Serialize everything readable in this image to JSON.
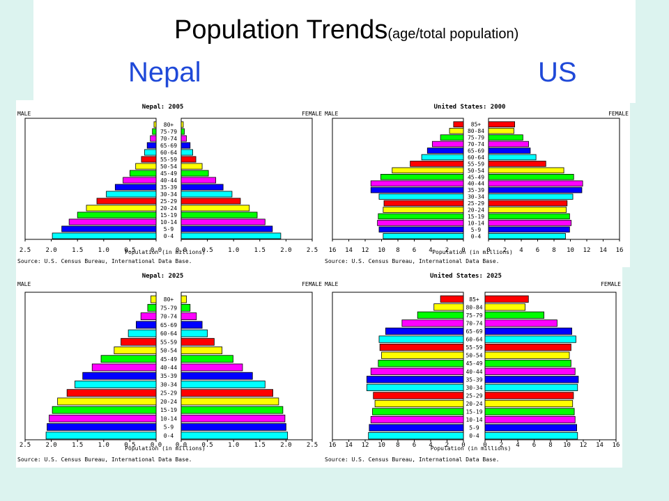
{
  "slide": {
    "title": "Population Trends",
    "title_suffix": "(age/total population)",
    "label_left": "Nepal",
    "label_right": "US"
  },
  "colors": {
    "background": "#dcf3ef",
    "label": "#1f49d8",
    "band_cycle": [
      "#00ffff",
      "#0000ff",
      "#ff00ff",
      "#00ff00",
      "#ffff00",
      "#ff0000"
    ]
  },
  "chart_data": [
    {
      "type": "bar",
      "title": "Nepal: 2005",
      "left_label": "MALE",
      "right_label": "FEMALE",
      "xlabel": "Population (in millions)",
      "source": "Source: U.S. Census Bureau, International Data Base.",
      "xlim": [
        0,
        2.5
      ],
      "x_ticks_left": [
        "2.5",
        "2.0",
        "1.5",
        "1.0",
        "0.5",
        "0.0"
      ],
      "x_ticks_right": [
        "0.0",
        "0.5",
        "1.0",
        "1.5",
        "2.0",
        "2.5"
      ],
      "categories": [
        "0-4",
        "5-9",
        "10-14",
        "15-19",
        "20-24",
        "25-29",
        "30-34",
        "35-39",
        "40-44",
        "45-49",
        "50-54",
        "55-59",
        "60-64",
        "65-69",
        "70-74",
        "75-79",
        "80+"
      ],
      "series": [
        {
          "name": "MALE",
          "values": [
            1.98,
            1.8,
            1.66,
            1.5,
            1.33,
            1.13,
            0.95,
            0.78,
            0.63,
            0.5,
            0.39,
            0.28,
            0.22,
            0.17,
            0.11,
            0.07,
            0.04
          ]
        },
        {
          "name": "FEMALE",
          "values": [
            1.9,
            1.74,
            1.6,
            1.45,
            1.3,
            1.13,
            0.97,
            0.8,
            0.66,
            0.52,
            0.4,
            0.28,
            0.22,
            0.17,
            0.1,
            0.06,
            0.04
          ]
        }
      ]
    },
    {
      "type": "bar",
      "title": "United States: 2000",
      "left_label": "MALE",
      "right_label": "FEMALE",
      "xlabel": "Population (in millions)",
      "source": "Source: U.S. Census Bureau, International Data Base.",
      "xlim": [
        0,
        16
      ],
      "x_ticks_left": [
        "16",
        "14",
        "12",
        "10",
        "8",
        "6",
        "4",
        "2",
        "0"
      ],
      "x_ticks_right": [
        "0",
        "2",
        "4",
        "6",
        "8",
        "10",
        "12",
        "14",
        "16"
      ],
      "categories": [
        "0-4",
        "5-9",
        "10-14",
        "15-19",
        "20-24",
        "25-29",
        "30-34",
        "35-39",
        "40-44",
        "45-49",
        "50-54",
        "55-59",
        "60-64",
        "65-69",
        "70-74",
        "75-79",
        "80-84",
        "85+"
      ],
      "series": [
        {
          "name": "MALE",
          "values": [
            9.8,
            10.3,
            10.5,
            10.4,
            9.8,
            9.7,
            10.3,
            11.3,
            11.3,
            10.1,
            8.7,
            6.5,
            5.1,
            4.4,
            3.8,
            2.8,
            1.7,
            1.2
          ]
        },
        {
          "name": "FEMALE",
          "values": [
            9.4,
            9.9,
            10.1,
            9.9,
            9.5,
            9.6,
            10.3,
            11.4,
            11.5,
            10.4,
            9.2,
            7.0,
            5.8,
            5.1,
            4.9,
            4.2,
            3.1,
            3.2
          ]
        }
      ]
    },
    {
      "type": "bar",
      "title": "Nepal: 2025",
      "left_label": "MALE",
      "right_label": "FEMALE",
      "xlabel": "Population (in millions)",
      "source": "Source: U.S. Census Bureau, International Data Base.",
      "xlim": [
        0,
        2.5
      ],
      "x_ticks_left": [
        "2.5",
        "2.0",
        "1.5",
        "1.0",
        "0.5",
        "0.0"
      ],
      "x_ticks_right": [
        "0.0",
        "0.5",
        "1.0",
        "1.5",
        "2.0",
        "2.5"
      ],
      "categories": [
        "0-4",
        "5-9",
        "10-14",
        "15-19",
        "20-24",
        "25-29",
        "30-34",
        "35-39",
        "40-44",
        "45-49",
        "50-54",
        "55-59",
        "60-64",
        "65-69",
        "70-74",
        "75-79",
        "80+"
      ],
      "series": [
        {
          "name": "MALE",
          "values": [
            2.1,
            2.08,
            2.04,
            1.98,
            1.88,
            1.7,
            1.55,
            1.4,
            1.22,
            1.05,
            0.8,
            0.67,
            0.53,
            0.38,
            0.29,
            0.16,
            0.1
          ]
        },
        {
          "name": "FEMALE",
          "values": [
            2.03,
            2.0,
            1.98,
            1.94,
            1.86,
            1.75,
            1.6,
            1.36,
            1.17,
            0.99,
            0.78,
            0.63,
            0.5,
            0.4,
            0.29,
            0.17,
            0.1
          ]
        }
      ]
    },
    {
      "type": "bar",
      "title": "United States: 2025",
      "left_label": "MALE",
      "right_label": "FEMALE",
      "xlabel": "Population (in millions)",
      "source": "Source: U.S. Census Bureau, International Data Base.",
      "xlim": [
        0,
        16
      ],
      "x_ticks_left": [
        "16",
        "14",
        "12",
        "10",
        "8",
        "6",
        "4",
        "2",
        "0"
      ],
      "x_ticks_right": [
        "0",
        "2",
        "4",
        "6",
        "8",
        "10",
        "12",
        "14",
        "16"
      ],
      "categories": [
        "0-4",
        "5-9",
        "10-14",
        "15-19",
        "20-24",
        "25-29",
        "30-34",
        "35-39",
        "40-44",
        "45-49",
        "50-54",
        "55-59",
        "60-64",
        "65-69",
        "70-74",
        "75-79",
        "80-84",
        "85+"
      ],
      "series": [
        {
          "name": "MALE",
          "values": [
            11.6,
            11.5,
            11.3,
            11.1,
            10.8,
            11.0,
            11.8,
            11.8,
            11.3,
            10.4,
            10.0,
            10.2,
            10.3,
            9.5,
            7.5,
            5.6,
            3.6,
            2.8
          ]
        },
        {
          "name": "FEMALE",
          "values": [
            11.3,
            11.2,
            11.0,
            10.9,
            10.7,
            10.8,
            11.3,
            11.4,
            11.0,
            10.5,
            10.3,
            10.5,
            11.1,
            10.6,
            8.8,
            7.2,
            4.9,
            5.3
          ]
        }
      ]
    }
  ]
}
